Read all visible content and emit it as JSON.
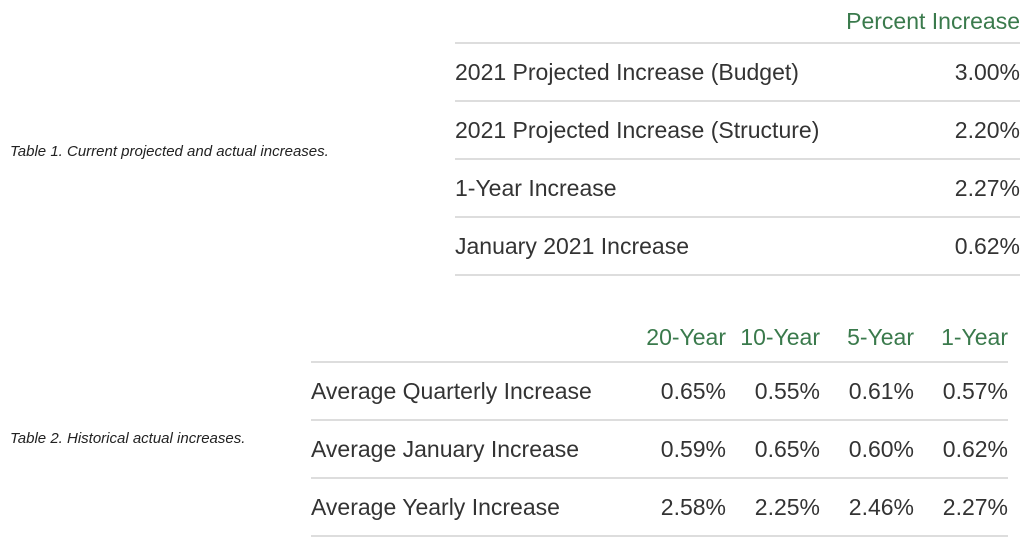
{
  "table1": {
    "caption": "Table 1. Current projected and actual increases.",
    "header": "Percent Increase",
    "rows": [
      {
        "label": "2021 Projected Increase (Budget)",
        "value": "3.00%"
      },
      {
        "label": "2021 Projected Increase (Structure)",
        "value": "2.20%"
      },
      {
        "label": "1-Year Increase",
        "value": "2.27%"
      },
      {
        "label": "January 2021 Increase",
        "value": "0.62%"
      }
    ]
  },
  "table2": {
    "caption": "Table 2. Historical actual increases.",
    "headers": [
      "20-Year",
      "10-Year",
      "5-Year",
      "1-Year"
    ],
    "rows": [
      {
        "label": "Average Quarterly Increase",
        "values": [
          "0.65%",
          "0.55%",
          "0.61%",
          "0.57%"
        ]
      },
      {
        "label": "Average January Increase",
        "values": [
          "0.59%",
          "0.65%",
          "0.60%",
          "0.62%"
        ]
      },
      {
        "label": "Average Yearly Increase",
        "values": [
          "2.58%",
          "2.25%",
          "2.46%",
          "2.27%"
        ]
      }
    ]
  },
  "colors": {
    "header_text": "#3a7a4c",
    "body_text": "#333333",
    "rule": "#dddddd"
  }
}
